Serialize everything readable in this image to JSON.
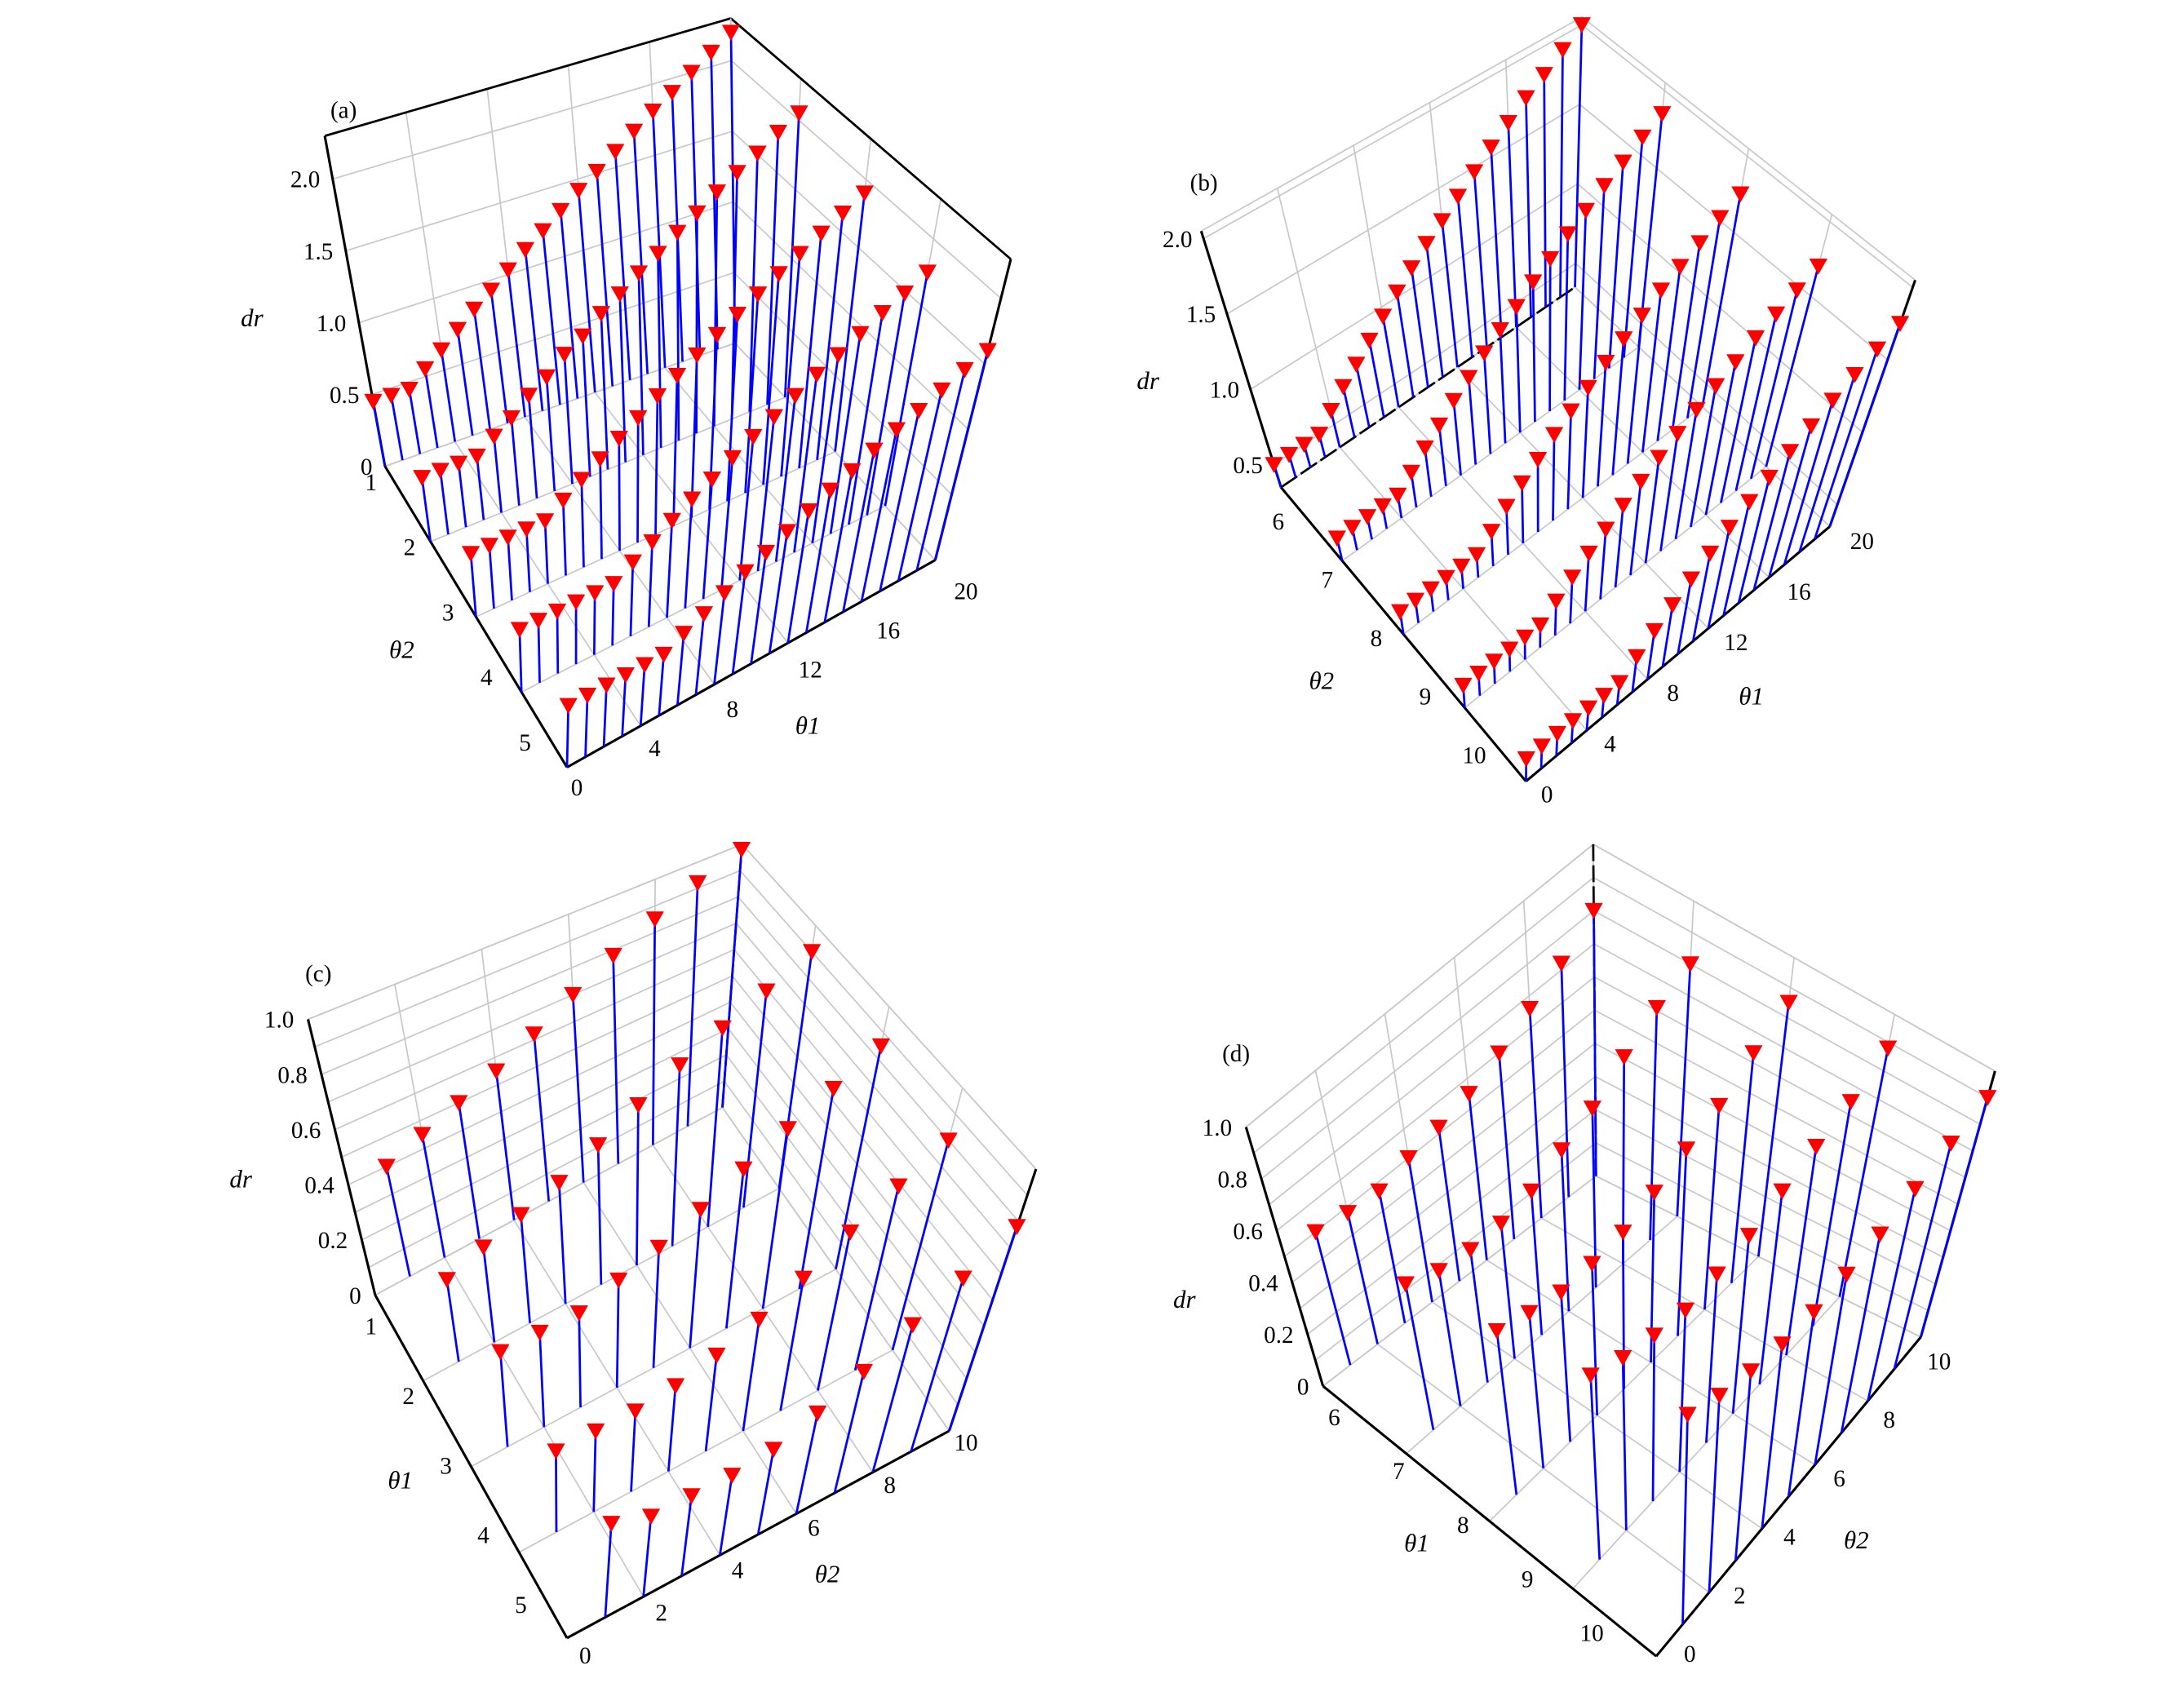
{
  "colors": {
    "stem": "#0000ff",
    "marker": "#ff0000",
    "grid": "#c8c8c8",
    "axis": "#000000"
  },
  "chart_data": [
    {
      "type": "scatter",
      "style": "3d-stem",
      "panel_label": "(a)",
      "zlabel": "dr",
      "row_label": "θ2",
      "col_label": "θ1",
      "row_var": "θ2",
      "col_var": "θ1",
      "row_lim": [
        1,
        5
      ],
      "col_lim": [
        0,
        20
      ],
      "zlim": [
        0,
        2.3
      ],
      "row_ticks": [
        "1",
        "2",
        "3",
        "4",
        "5"
      ],
      "col_ticks": [
        "0",
        "4",
        "8",
        "12",
        "16",
        "20"
      ],
      "z_ticks": [
        "0",
        "0.5",
        "1.0",
        "1.5",
        "2.0"
      ],
      "row_values": [
        1,
        2,
        3,
        4,
        5
      ],
      "col_values": [
        0,
        1,
        2,
        3,
        4,
        5,
        6,
        7,
        8,
        9,
        10,
        11,
        12,
        13,
        14,
        15,
        16,
        17,
        18,
        19,
        20
      ],
      "dr": [
        [
          0.45,
          0.45,
          0.45,
          0.55,
          0.64,
          0.74,
          0.84,
          0.93,
          1.03,
          1.13,
          1.22,
          1.32,
          1.42,
          1.51,
          1.61,
          1.71,
          1.81,
          1.9,
          2.0,
          2.1,
          2.2
        ],
        [
          0.45,
          0.45,
          0.45,
          0.45,
          0.54,
          0.62,
          0.73,
          0.81,
          0.92,
          1.0,
          1.11,
          1.2,
          1.3,
          1.39,
          1.49,
          1.58,
          1.68,
          1.77,
          1.86,
          1.96,
          2.05
        ],
        [
          0.45,
          0.45,
          0.45,
          0.45,
          0.45,
          0.54,
          0.63,
          0.72,
          0.81,
          0.9,
          1.0,
          1.09,
          1.18,
          1.27,
          1.36,
          1.45,
          1.54,
          1.63,
          1.72,
          1.81,
          1.9
        ],
        [
          0.45,
          0.45,
          0.45,
          0.45,
          0.45,
          0.45,
          0.54,
          0.62,
          0.71,
          0.8,
          0.88,
          0.97,
          1.06,
          1.14,
          1.23,
          1.32,
          1.4,
          1.49,
          1.58,
          1.66,
          1.75
        ],
        [
          0.45,
          0.45,
          0.45,
          0.45,
          0.45,
          0.45,
          0.53,
          0.6,
          0.68,
          0.76,
          0.83,
          0.91,
          0.99,
          1.07,
          1.14,
          1.22,
          1.3,
          1.37,
          1.45,
          1.53,
          1.6
        ]
      ]
    },
    {
      "type": "scatter",
      "style": "3d-stem",
      "panel_label": "(b)",
      "zlabel": "dr",
      "row_label": "θ2",
      "col_label": "θ1",
      "row_var": "θ2",
      "col_var": "θ1",
      "row_lim": [
        6,
        10
      ],
      "col_lim": [
        0,
        20
      ],
      "zlim": [
        0.35,
        2.05
      ],
      "row_ticks": [
        "6",
        "7",
        "8",
        "9",
        "10"
      ],
      "col_ticks": [
        "0",
        "4",
        "8",
        "12",
        "16",
        "20"
      ],
      "z_ticks": [
        "0.5",
        "1.0",
        "1.5",
        "2.0"
      ],
      "row_values": [
        6,
        7,
        8,
        9,
        10
      ],
      "col_values": [
        0,
        1,
        2,
        3,
        4,
        5,
        6,
        7,
        8,
        9,
        10,
        11,
        12,
        13,
        14,
        15,
        16,
        17,
        18,
        19,
        20
      ],
      "dr": [
        [
          0.5,
          0.5,
          0.5,
          0.5,
          0.59,
          0.68,
          0.76,
          0.85,
          0.94,
          1.03,
          1.12,
          1.21,
          1.29,
          1.38,
          1.47,
          1.56,
          1.65,
          1.74,
          1.82,
          1.91,
          2.0
        ],
        [
          0.5,
          0.5,
          0.5,
          0.5,
          0.5,
          0.58,
          0.67,
          0.75,
          0.84,
          0.92,
          1.01,
          1.09,
          1.17,
          1.26,
          1.34,
          1.43,
          1.51,
          1.6,
          1.68,
          1.77,
          1.85
        ],
        [
          0.5,
          0.5,
          0.5,
          0.5,
          0.5,
          0.5,
          0.58,
          0.67,
          0.75,
          0.83,
          0.92,
          1.0,
          1.08,
          1.17,
          1.25,
          1.33,
          1.42,
          1.5,
          1.58,
          1.67,
          1.75
        ],
        [
          0.5,
          0.5,
          0.5,
          0.5,
          0.5,
          0.5,
          0.58,
          0.66,
          0.74,
          0.82,
          0.9,
          0.98,
          1.06,
          1.14,
          1.22,
          1.3,
          1.38,
          1.46,
          1.54,
          1.62,
          1.7
        ],
        [
          0.5,
          0.5,
          0.5,
          0.5,
          0.5,
          0.5,
          0.5,
          0.59,
          0.68,
          0.77,
          0.86,
          0.95,
          1.04,
          1.13,
          1.21,
          1.3,
          1.39,
          1.48,
          1.57,
          1.66,
          1.75
        ]
      ]
    },
    {
      "type": "scatter",
      "style": "3d-stem",
      "panel_label": "(c)",
      "zlabel": "dr",
      "row_label": "θ1",
      "col_label": "θ2",
      "row_var": "θ1",
      "col_var": "θ2",
      "row_lim": [
        1,
        5
      ],
      "col_lim": [
        0,
        10
      ],
      "zlim": [
        0,
        1.0
      ],
      "row_ticks": [
        "1",
        "2",
        "3",
        "4",
        "5"
      ],
      "col_ticks": [
        "0",
        "2",
        "4",
        "6",
        "8",
        "10"
      ],
      "z_ticks": [
        "0",
        "0.2",
        "0.4",
        "0.6",
        "0.8",
        "1.0"
      ],
      "row_values": [
        1,
        2,
        3,
        4,
        5
      ],
      "col_values": [
        1,
        2,
        3,
        4,
        5,
        6,
        7,
        8,
        9,
        10
      ],
      "dr": [
        [
          0.4,
          0.45,
          0.5,
          0.55,
          0.62,
          0.7,
          0.78,
          0.85,
          0.92,
          0.98
        ],
        [
          0.3,
          0.35,
          0.4,
          0.45,
          0.52,
          0.6,
          0.68,
          0.75,
          0.82,
          0.9
        ],
        [
          0.35,
          0.35,
          0.35,
          0.4,
          0.45,
          0.52,
          0.6,
          0.68,
          0.76,
          0.85
        ],
        [
          0.3,
          0.3,
          0.3,
          0.32,
          0.36,
          0.42,
          0.5,
          0.6,
          0.7,
          0.8
        ],
        [
          0.35,
          0.3,
          0.3,
          0.3,
          0.32,
          0.38,
          0.46,
          0.56,
          0.66,
          0.78
        ]
      ]
    },
    {
      "type": "scatter",
      "style": "3d-stem",
      "panel_label": "(d)",
      "zlabel": "dr",
      "row_label": "θ1",
      "col_label": "θ2",
      "row_var": "θ1",
      "col_var": "θ2",
      "row_lim": [
        6,
        10
      ],
      "col_lim": [
        0,
        10
      ],
      "zlim": [
        0,
        1.0
      ],
      "row_ticks": [
        "6",
        "7",
        "8",
        "9",
        "10"
      ],
      "col_ticks": [
        "0",
        "2",
        "4",
        "6",
        "8",
        "10"
      ],
      "z_ticks": [
        "0",
        "0.2",
        "0.4",
        "0.6",
        "0.8",
        "1.0"
      ],
      "row_values": [
        6,
        7,
        8,
        9,
        10
      ],
      "col_values": [
        1,
        2,
        3,
        4,
        5,
        6,
        7,
        8,
        9,
        10
      ],
      "dr": [
        [
          0.5,
          0.48,
          0.47,
          0.5,
          0.52,
          0.55,
          0.6,
          0.66,
          0.72,
          0.8
        ],
        [
          0.55,
          0.5,
          0.48,
          0.48,
          0.5,
          0.55,
          0.6,
          0.68,
          0.75,
          0.8
        ],
        [
          0.62,
          0.58,
          0.55,
          0.55,
          0.56,
          0.6,
          0.65,
          0.7,
          0.78,
          0.85
        ],
        [
          0.7,
          0.65,
          0.62,
          0.6,
          0.62,
          0.65,
          0.7,
          0.75,
          0.8,
          0.88
        ],
        [
          0.8,
          0.75,
          0.72,
          0.7,
          0.7,
          0.72,
          0.75,
          0.8,
          0.85,
          0.9
        ]
      ]
    }
  ]
}
